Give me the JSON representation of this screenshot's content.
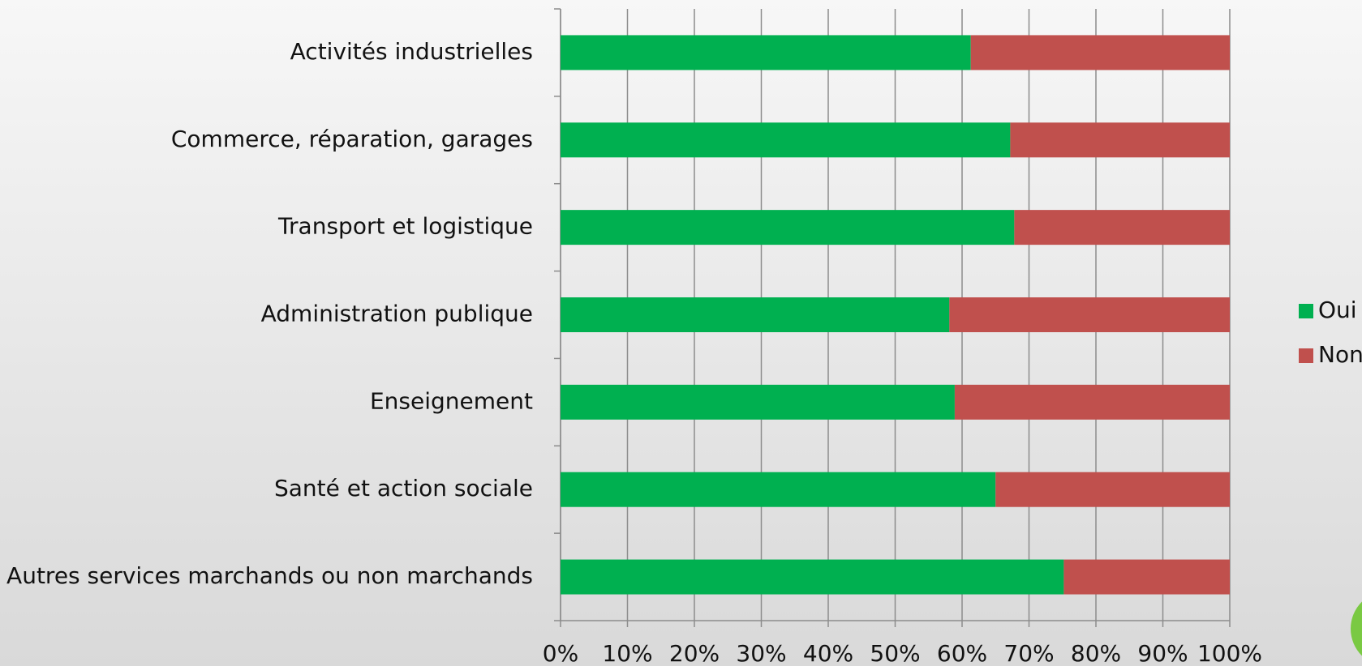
{
  "chart_data": {
    "type": "stacked_barh",
    "categories": [
      "Activités industrielles",
      "Commerce, réparation, garages",
      "Transport et logistique",
      "Administration publique",
      "Enseignement",
      "Santé et action sociale",
      "Autres services marchands ou non marchands"
    ],
    "series": [
      {
        "name": "Oui",
        "color": "#00b050",
        "values": [
          61.3,
          67.2,
          67.8,
          58.1,
          58.9,
          65.0,
          75.2
        ]
      },
      {
        "name": "Non",
        "color": "#c0504d",
        "values": [
          38.7,
          32.8,
          32.2,
          41.9,
          41.1,
          35.0,
          24.8
        ]
      }
    ],
    "xlim": [
      0,
      100
    ],
    "xticks": [
      {
        "value": 0,
        "label": "0%"
      },
      {
        "value": 10,
        "label": "10%"
      },
      {
        "value": 20,
        "label": "20%"
      },
      {
        "value": 30,
        "label": "30%"
      },
      {
        "value": 40,
        "label": "40%"
      },
      {
        "value": 50,
        "label": "50%"
      },
      {
        "value": 60,
        "label": "60%"
      },
      {
        "value": 70,
        "label": "70%"
      },
      {
        "value": 80,
        "label": "80%"
      },
      {
        "value": 90,
        "label": "90%"
      },
      {
        "value": 100,
        "label": "100%"
      }
    ],
    "grid": true,
    "legend": "right"
  }
}
